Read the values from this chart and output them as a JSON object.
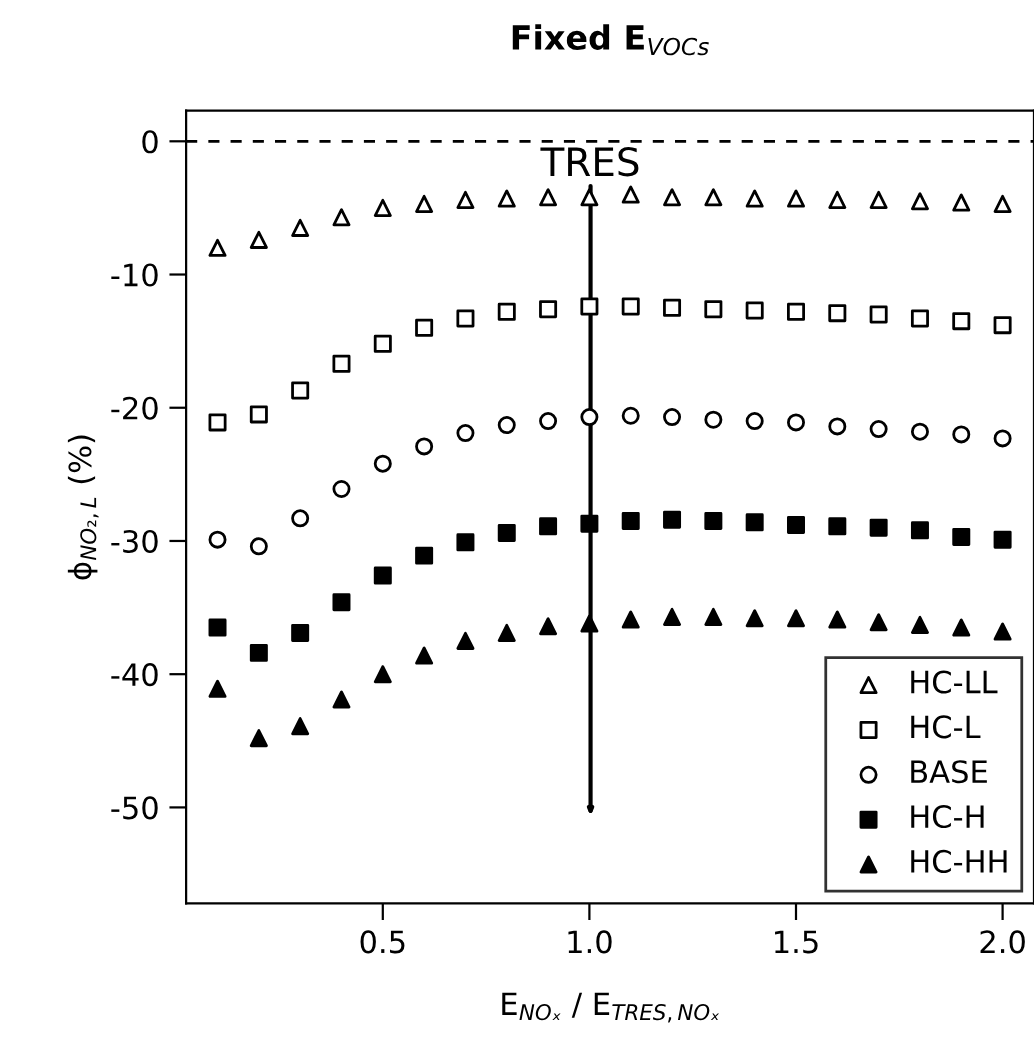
{
  "chart_data": {
    "type": "scatter",
    "title": "Fixed E$_{VOCs}$",
    "xlabel": "E$_{NOₓ}$ / E$_{TRES,NOₓ}$",
    "ylabel": "ϕ$_{NO₂,L}$ (%)",
    "x": [
      0.1,
      0.2,
      0.3,
      0.4,
      0.5,
      0.6,
      0.7,
      0.8,
      0.9,
      1.0,
      1.1,
      1.2,
      1.3,
      1.4,
      1.5,
      1.6,
      1.7,
      1.8,
      1.9,
      2.0
    ],
    "series": [
      {
        "name": "HC-LL",
        "color": "#000000",
        "marker": "triangle-open",
        "values": [
          -8.0,
          -7.4,
          -6.5,
          -5.7,
          -5.0,
          -4.7,
          -4.4,
          -4.3,
          -4.2,
          -4.2,
          -4.0,
          -4.2,
          -4.2,
          -4.3,
          -4.3,
          -4.4,
          -4.4,
          -4.5,
          -4.6,
          -4.7
        ]
      },
      {
        "name": "HC-L",
        "color": "#000000",
        "marker": "square-open",
        "values": [
          -21.1,
          -20.5,
          -18.7,
          -16.7,
          -15.2,
          -14.0,
          -13.3,
          -12.8,
          -12.6,
          -12.4,
          -12.4,
          -12.5,
          -12.6,
          -12.7,
          -12.8,
          -12.9,
          -13.0,
          -13.3,
          -13.5,
          -13.8
        ]
      },
      {
        "name": "BASE",
        "color": "#000000",
        "marker": "circle-open",
        "values": [
          -29.9,
          -30.4,
          -28.3,
          -26.1,
          -24.2,
          -22.9,
          -21.9,
          -21.3,
          -21.0,
          -20.7,
          -20.6,
          -20.7,
          -20.9,
          -21.0,
          -21.1,
          -21.4,
          -21.6,
          -21.8,
          -22.0,
          -22.3
        ]
      },
      {
        "name": "HC-H",
        "color": "#000000",
        "marker": "square",
        "values": [
          -36.5,
          -38.4,
          -36.9,
          -34.6,
          -32.6,
          -31.1,
          -30.1,
          -29.4,
          -28.9,
          -28.7,
          -28.5,
          -28.4,
          -28.5,
          -28.6,
          -28.8,
          -28.9,
          -29.0,
          -29.2,
          -29.7,
          -29.9
        ]
      },
      {
        "name": "HC-HH",
        "color": "#000000",
        "marker": "triangle",
        "values": [
          -41.1,
          -44.8,
          -43.9,
          -41.9,
          -40.0,
          -38.6,
          -37.5,
          -36.9,
          -36.4,
          -36.2,
          -35.9,
          -35.7,
          -35.7,
          -35.8,
          -35.8,
          -35.9,
          -36.1,
          -36.3,
          -36.5,
          -36.8
        ]
      }
    ],
    "ref_lines": [
      {
        "axis": "y",
        "value": 0,
        "label": null,
        "color": "#000000",
        "line_style": "dashed"
      }
    ],
    "annotations": [
      "TRES"
    ],
    "xlim": [
      0.024,
      2.076
    ],
    "ylim": [
      -57.2,
      2.3
    ],
    "xticks": [
      0.5,
      {
        "value": 1.0,
        "label": "1.0"
      },
      1.5,
      {
        "value": 2.0,
        "label": "2.0"
      }
    ],
    "yticks": [
      0,
      -10,
      -20,
      -30,
      -40,
      -50
    ],
    "legend": "bottom right",
    "grid": false
  }
}
